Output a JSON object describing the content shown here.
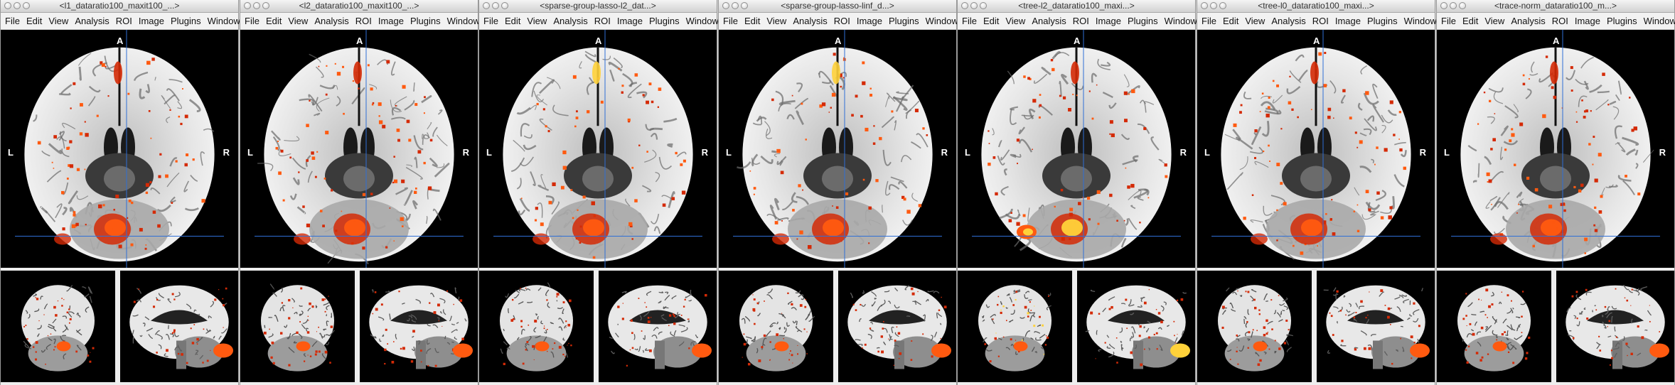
{
  "menu": [
    "File",
    "Edit",
    "View",
    "Analysis",
    "ROI",
    "Image",
    "Plugins",
    "Window"
  ],
  "orientation": {
    "anterior": "A",
    "left": "L",
    "right": "R"
  },
  "colors": {
    "overlay_dark": "#d42a06",
    "overlay_mid": "#ff5a10",
    "overlay_hot": "#ffd23a",
    "crosshair": "#2f6fd6"
  },
  "windows": [
    {
      "title": "<l1_dataratio100_maxit100_...>",
      "hotspots": "sparse"
    },
    {
      "title": "<l2_dataratio100_maxit100_...>",
      "hotspots": "sparse"
    },
    {
      "title": "<sparse-group-lasso-l2_dat...>",
      "hotspots": "medium"
    },
    {
      "title": "<sparse-group-lasso-linf_d...>",
      "hotspots": "medium"
    },
    {
      "title": "<tree-l2_dataratio100_maxi...>",
      "hotspots": "hot"
    },
    {
      "title": "<tree-l0_dataratio100_maxi...>",
      "hotspots": "sparse"
    },
    {
      "title": "<trace-norm_dataratio100_m...>",
      "hotspots": "sparse"
    }
  ]
}
